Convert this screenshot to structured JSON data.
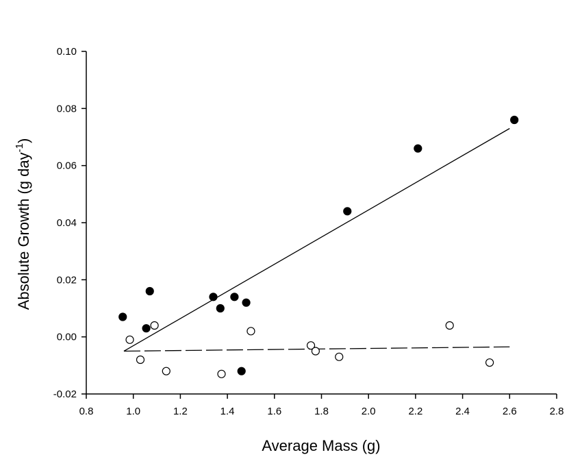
{
  "chart_data": {
    "type": "scatter",
    "title": "",
    "xlabel": "Average Mass (g)",
    "ylabel_main": "Absolute Growth (g day",
    "ylabel_sup": "-1",
    "ylabel_close": ")",
    "xlim": [
      0.8,
      2.8
    ],
    "ylim": [
      -0.02,
      0.1
    ],
    "xticks": [
      "0.8",
      "1.0",
      "1.2",
      "1.4",
      "1.6",
      "1.8",
      "2.0",
      "2.2",
      "2.4",
      "2.6",
      "2.8"
    ],
    "yticks": [
      "-0.02",
      "0.00",
      "0.02",
      "0.04",
      "0.06",
      "0.08",
      "0.10"
    ],
    "grid": false,
    "series": [
      {
        "marker": "filled-circle",
        "color": "#000000",
        "points": [
          [
            0.955,
            0.007
          ],
          [
            1.055,
            0.003
          ],
          [
            1.07,
            0.016
          ],
          [
            1.34,
            0.014
          ],
          [
            1.37,
            0.01
          ],
          [
            1.43,
            0.014
          ],
          [
            1.46,
            -0.012
          ],
          [
            1.48,
            0.012
          ],
          [
            1.91,
            0.044
          ],
          [
            2.21,
            0.066
          ],
          [
            2.62,
            0.076
          ]
        ],
        "fit": {
          "style": "solid",
          "from": [
            0.96,
            -0.005
          ],
          "to": [
            2.6,
            0.073
          ]
        }
      },
      {
        "marker": "open-circle",
        "color": "#000000",
        "points": [
          [
            0.985,
            -0.001
          ],
          [
            1.03,
            -0.008
          ],
          [
            1.09,
            0.004
          ],
          [
            1.14,
            -0.012
          ],
          [
            1.375,
            -0.013
          ],
          [
            1.5,
            0.002
          ],
          [
            1.755,
            -0.003
          ],
          [
            1.775,
            -0.005
          ],
          [
            1.875,
            -0.007
          ],
          [
            2.345,
            0.004
          ],
          [
            2.515,
            -0.009
          ]
        ],
        "fit": {
          "style": "dashed",
          "from": [
            0.96,
            -0.005
          ],
          "to": [
            2.6,
            -0.0035
          ]
        }
      }
    ]
  }
}
